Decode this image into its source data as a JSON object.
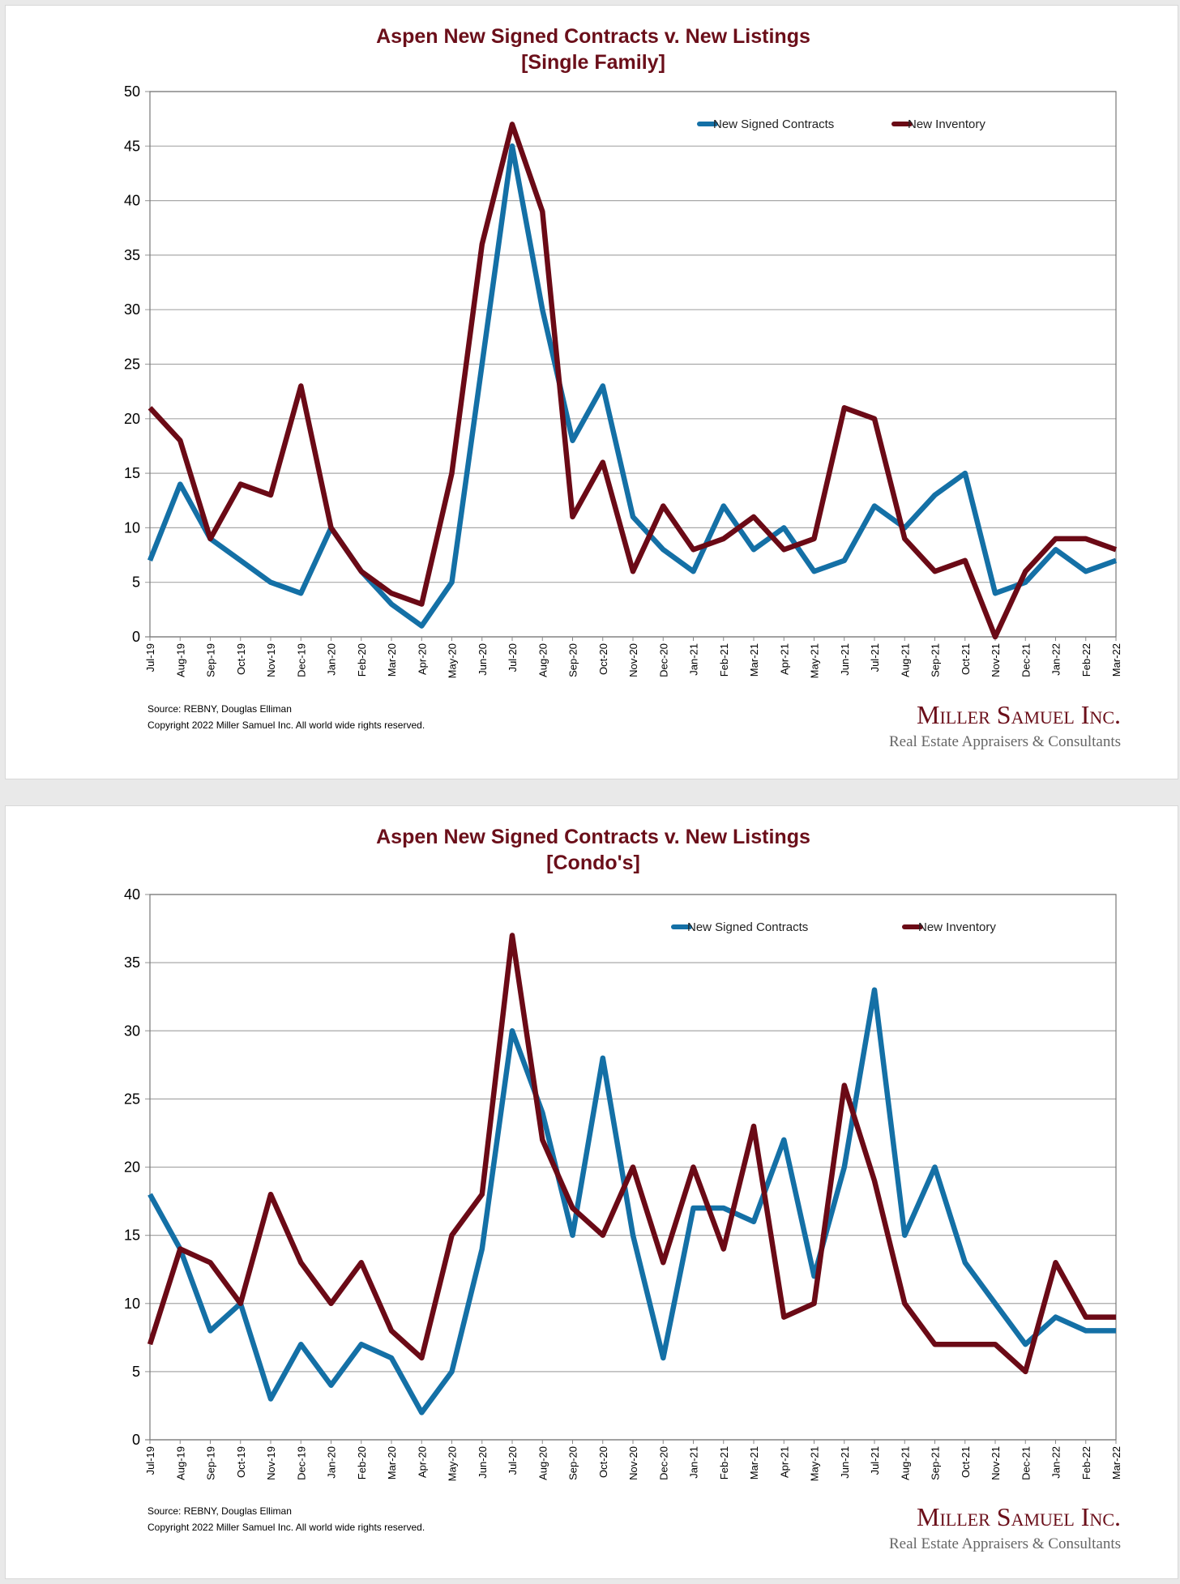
{
  "chart_data": [
    {
      "type": "line",
      "title": "Aspen New Signed Contracts v. New Listings",
      "subtitle": "[Single Family]",
      "xlabel": "",
      "ylabel": "",
      "ylim": [
        0,
        50
      ],
      "yticks": [
        0,
        5,
        10,
        15,
        20,
        25,
        30,
        35,
        40,
        45,
        50
      ],
      "grid": true,
      "legend_position": "top-right",
      "categories": [
        "Jul-19",
        "Aug-19",
        "Sep-19",
        "Oct-19",
        "Nov-19",
        "Dec-19",
        "Jan-20",
        "Feb-20",
        "Mar-20",
        "Apr-20",
        "May-20",
        "Jun-20",
        "Jul-20",
        "Aug-20",
        "Sep-20",
        "Oct-20",
        "Nov-20",
        "Dec-20",
        "Jan-21",
        "Feb-21",
        "Mar-21",
        "Apr-21",
        "May-21",
        "Jun-21",
        "Jul-21",
        "Aug-21",
        "Sep-21",
        "Oct-21",
        "Nov-21",
        "Dec-21",
        "Jan-22",
        "Feb-22",
        "Mar-22"
      ],
      "series": [
        {
          "name": "New Signed Contracts",
          "color": "#1470a6",
          "values": [
            7,
            14,
            9,
            7,
            5,
            4,
            10,
            6,
            3,
            1,
            5,
            25,
            45,
            30,
            18,
            23,
            11,
            8,
            6,
            12,
            8,
            10,
            6,
            7,
            12,
            10,
            13,
            15,
            4,
            5,
            8,
            6,
            7
          ]
        },
        {
          "name": "New Inventory",
          "color": "#6b0a16",
          "values": [
            21,
            18,
            9,
            14,
            13,
            23,
            10,
            6,
            4,
            3,
            15,
            36,
            47,
            39,
            11,
            16,
            6,
            12,
            8,
            9,
            11,
            8,
            9,
            21,
            20,
            9,
            6,
            7,
            0,
            6,
            9,
            9,
            8
          ]
        }
      ]
    },
    {
      "type": "line",
      "title": "Aspen New Signed Contracts v. New Listings",
      "subtitle": "[Condo's]",
      "xlabel": "",
      "ylabel": "",
      "ylim": [
        0,
        40
      ],
      "yticks": [
        0,
        5,
        10,
        15,
        20,
        25,
        30,
        35,
        40
      ],
      "grid": true,
      "legend_position": "top-right",
      "categories": [
        "Jul-19",
        "Aug-19",
        "Sep-19",
        "Oct-19",
        "Nov-19",
        "Dec-19",
        "Jan-20",
        "Feb-20",
        "Mar-20",
        "Apr-20",
        "May-20",
        "Jun-20",
        "Jul-20",
        "Aug-20",
        "Sep-20",
        "Oct-20",
        "Nov-20",
        "Dec-20",
        "Jan-21",
        "Feb-21",
        "Mar-21",
        "Apr-21",
        "May-21",
        "Jun-21",
        "Jul-21",
        "Aug-21",
        "Sep-21",
        "Oct-21",
        "Nov-21",
        "Dec-21",
        "Jan-22",
        "Feb-22",
        "Mar-22"
      ],
      "series": [
        {
          "name": "New Signed Contracts",
          "color": "#1470a6",
          "values": [
            18,
            14,
            8,
            10,
            3,
            7,
            4,
            7,
            6,
            2,
            5,
            14,
            30,
            24,
            15,
            28,
            15,
            6,
            17,
            17,
            16,
            22,
            12,
            20,
            33,
            15,
            20,
            13,
            10,
            7,
            9,
            8,
            8
          ]
        },
        {
          "name": "New Inventory",
          "color": "#6b0a16",
          "values": [
            7,
            14,
            13,
            10,
            18,
            13,
            10,
            13,
            8,
            6,
            15,
            18,
            37,
            22,
            17,
            15,
            20,
            13,
            20,
            14,
            23,
            9,
            10,
            26,
            19,
            10,
            7,
            7,
            7,
            5,
            13,
            9,
            9
          ]
        }
      ]
    }
  ],
  "footer": {
    "source": "Source: REBNY, Douglas Elliman",
    "copyright": "Copyright 2022 Miller Samuel Inc.  All world wide rights reserved.",
    "logo_name": "Miller Samuel Inc.",
    "logo_tagline": "Real Estate Appraisers & Consultants"
  }
}
